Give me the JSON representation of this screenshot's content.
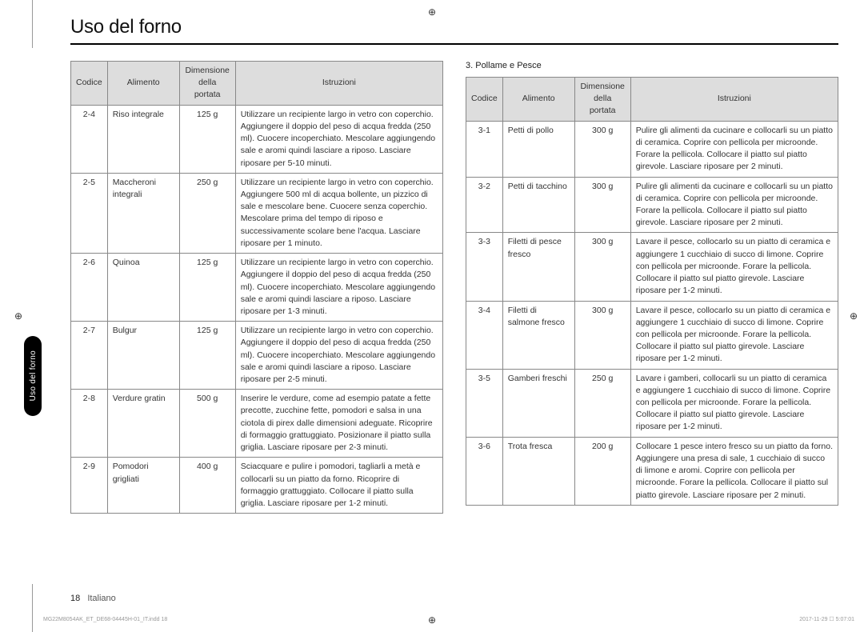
{
  "title": "Uso del forno",
  "sideTab": "Uso del forno",
  "sectionHeading": "3. Pollame e Pesce",
  "headers": {
    "code": "Codice",
    "food": "Alimento",
    "size": "Dimensione della portata",
    "instr": "Istruzioni"
  },
  "tableLeft": [
    {
      "code": "2-4",
      "food": "Riso integrale",
      "size": "125 g",
      "instr": "Utilizzare un recipiente largo in vetro con coperchio. Aggiungere il doppio del peso di acqua fredda (250 ml). Cuocere incoperchiato. Mescolare aggiungendo sale e aromi quindi lasciare a riposo. Lasciare riposare per 5-10 minuti."
    },
    {
      "code": "2-5",
      "food": "Maccheroni integrali",
      "size": "250 g",
      "instr": "Utilizzare un recipiente largo in vetro con coperchio. Aggiungere 500 ml di acqua bollente, un pizzico di sale e mescolare bene. Cuocere senza coperchio. Mescolare prima del tempo di riposo e successivamente scolare bene l'acqua. Lasciare riposare per 1 minuto."
    },
    {
      "code": "2-6",
      "food": "Quinoa",
      "size": "125 g",
      "instr": "Utilizzare un recipiente largo in vetro con coperchio. Aggiungere il doppio del peso di acqua fredda (250 ml). Cuocere incoperchiato. Mescolare aggiungendo sale e aromi quindi lasciare a riposo. Lasciare riposare per 1-3 minuti."
    },
    {
      "code": "2-7",
      "food": "Bulgur",
      "size": "125 g",
      "instr": "Utilizzare un recipiente largo in vetro con coperchio. Aggiungere il doppio del peso di acqua fredda (250 ml). Cuocere incoperchiato. Mescolare aggiungendo sale e aromi quindi lasciare a riposo. Lasciare riposare per 2-5 minuti."
    },
    {
      "code": "2-8",
      "food": "Verdure gratin",
      "size": "500 g",
      "instr": "Inserire le verdure, come ad esempio patate a fette precotte, zucchine fette, pomodori e salsa in una ciotola di pirex dalle dimensioni adeguate. Ricoprire di formaggio grattuggiato. Posizionare il piatto sulla griglia. Lasciare riposare per 2-3 minuti."
    },
    {
      "code": "2-9",
      "food": "Pomodori grigliati",
      "size": "400 g",
      "instr": "Sciacquare e pulire i pomodori, tagliarli a metà e collocarli su un piatto da forno. Ricoprire di formaggio grattuggiato. Collocare il piatto sulla griglia. Lasciare riposare per 1-2 minuti."
    }
  ],
  "tableRight": [
    {
      "code": "3-1",
      "food": "Petti di pollo",
      "size": "300 g",
      "instr": "Pulire gli alimenti da cucinare e collocarli su un piatto di ceramica. Coprire con pellicola per microonde. Forare la pellicola. Collocare il piatto sul piatto girevole. Lasciare riposare per 2 minuti."
    },
    {
      "code": "3-2",
      "food": "Petti di tacchino",
      "size": "300 g",
      "instr": "Pulire gli alimenti da cucinare e collocarli su un piatto di ceramica. Coprire con pellicola per microonde. Forare la pellicola. Collocare il piatto sul piatto girevole. Lasciare riposare per 2 minuti."
    },
    {
      "code": "3-3",
      "food": "Filetti di pesce fresco",
      "size": "300 g",
      "instr": "Lavare il pesce, collocarlo su un piatto di ceramica e aggiungere 1 cucchiaio di succo di limone. Coprire con pellicola per microonde. Forare la pellicola. Collocare il piatto sul piatto girevole. Lasciare riposare per 1-2 minuti."
    },
    {
      "code": "3-4",
      "food": "Filetti di salmone fresco",
      "size": "300 g",
      "instr": "Lavare il pesce, collocarlo su un piatto di ceramica e aggiungere 1 cucchiaio di succo di limone. Coprire con pellicola per microonde. Forare la pellicola. Collocare il piatto sul piatto girevole. Lasciare riposare per 1-2 minuti."
    },
    {
      "code": "3-5",
      "food": "Gamberi freschi",
      "size": "250 g",
      "instr": "Lavare i gamberi, collocarli su un piatto di ceramica e aggiungere 1 cucchiaio di succo di limone. Coprire con pellicola per microonde. Forare la pellicola. Collocare il piatto sul piatto girevole. Lasciare riposare per 1-2 minuti."
    },
    {
      "code": "3-6",
      "food": "Trota fresca",
      "size": "200 g",
      "instr": "Collocare 1 pesce intero fresco su un piatto da forno. Aggiungere una presa di sale, 1 cucchiaio di succo di limone e aromi. Coprire con pellicola per microonde. Forare la pellicola. Collocare il piatto sul piatto girevole. Lasciare riposare per 2 minuti."
    }
  ],
  "footer": {
    "pageNum": "18",
    "lang": "Italiano"
  },
  "imprint": {
    "left": "MG22M8054AK_ET_DE68-04445H-01_IT.indd   18",
    "right": "2017-11-29   ☐ 5:07:01"
  },
  "cropMark": "⊕"
}
